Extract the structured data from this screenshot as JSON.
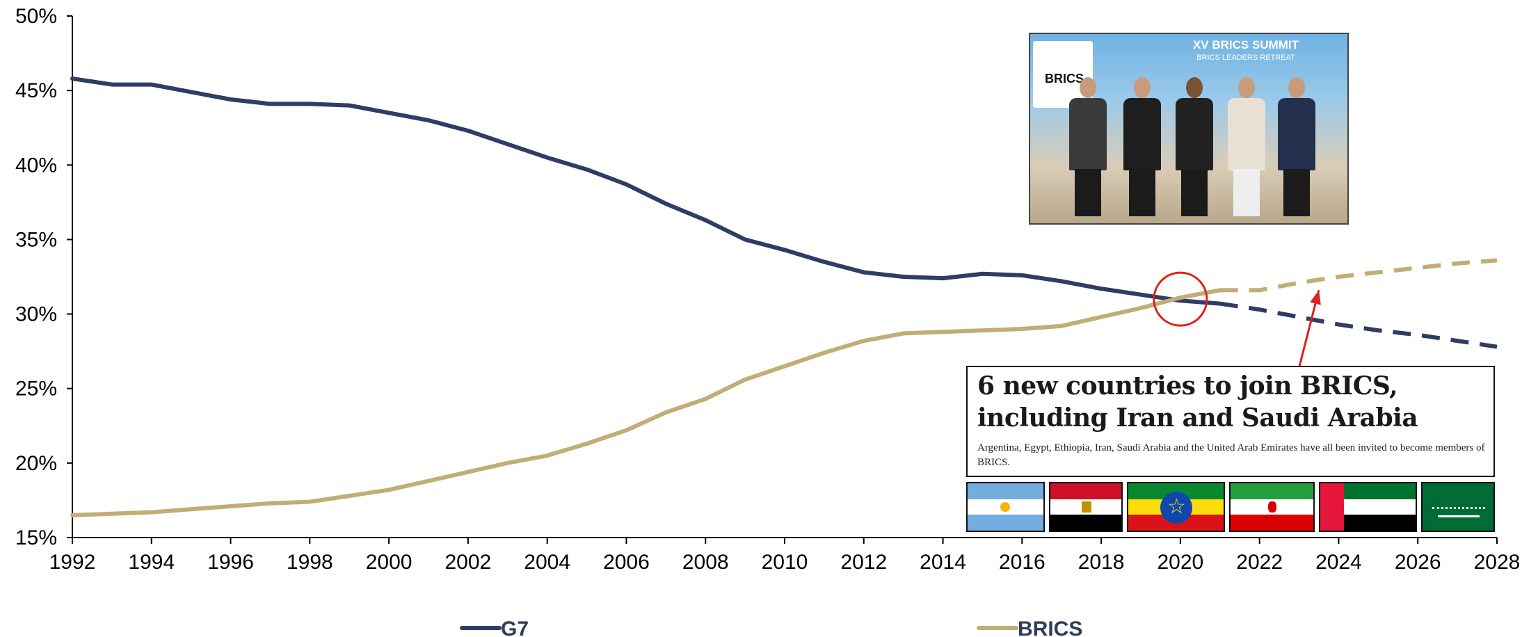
{
  "chart_data": {
    "type": "line",
    "title": "",
    "xlabel": "",
    "ylabel": "",
    "xlim": [
      1992,
      2028
    ],
    "ylim": [
      15,
      50
    ],
    "x_ticks": [
      "1992",
      "1994",
      "1996",
      "1998",
      "2000",
      "2002",
      "2004",
      "2006",
      "2008",
      "2010",
      "2012",
      "2014",
      "2016",
      "2018",
      "2020",
      "2022",
      "2024",
      "2026",
      "2028"
    ],
    "y_ticks": [
      "15%",
      "20%",
      "25%",
      "30%",
      "35%",
      "40%",
      "45%",
      "50%"
    ],
    "legend_position": "bottom",
    "series": [
      {
        "name": "G7",
        "color": "#2f3c64",
        "x": [
          1992,
          1993,
          1994,
          1995,
          1996,
          1997,
          1998,
          1999,
          2000,
          2001,
          2002,
          2003,
          2004,
          2005,
          2006,
          2007,
          2008,
          2009,
          2010,
          2011,
          2012,
          2013,
          2014,
          2015,
          2016,
          2017,
          2018,
          2019,
          2020,
          2021
        ],
        "values": [
          45.8,
          45.4,
          45.4,
          44.9,
          44.4,
          44.1,
          44.1,
          44.0,
          43.5,
          43.0,
          42.3,
          41.4,
          40.5,
          39.7,
          38.7,
          37.4,
          36.3,
          35.0,
          34.3,
          33.5,
          32.8,
          32.5,
          32.4,
          32.7,
          32.6,
          32.2,
          31.7,
          31.3,
          30.9,
          30.7
        ],
        "projection_x": [
          2021,
          2022,
          2023,
          2024,
          2025,
          2026,
          2027,
          2028
        ],
        "projection_values": [
          30.7,
          30.3,
          29.8,
          29.3,
          28.9,
          28.6,
          28.2,
          27.8
        ]
      },
      {
        "name": "BRICS",
        "color": "#c2ad74",
        "x": [
          1992,
          1993,
          1994,
          1995,
          1996,
          1997,
          1998,
          1999,
          2000,
          2001,
          2002,
          2003,
          2004,
          2005,
          2006,
          2007,
          2008,
          2009,
          2010,
          2011,
          2012,
          2013,
          2014,
          2015,
          2016,
          2017,
          2018,
          2019,
          2020,
          2021
        ],
        "values": [
          16.5,
          16.6,
          16.7,
          16.9,
          17.1,
          17.3,
          17.4,
          17.8,
          18.2,
          18.8,
          19.4,
          20.0,
          20.5,
          21.3,
          22.2,
          23.4,
          24.3,
          25.6,
          26.5,
          27.4,
          28.2,
          28.7,
          28.8,
          28.9,
          29.0,
          29.2,
          29.8,
          30.4,
          31.1,
          31.6
        ],
        "projection_x": [
          2021,
          2022,
          2023,
          2024,
          2025,
          2026,
          2027,
          2028
        ],
        "projection_values": [
          31.6,
          31.6,
          32.1,
          32.5,
          32.8,
          33.1,
          33.4,
          33.6
        ]
      }
    ],
    "annotations": {
      "circle": {
        "x": 2020,
        "y": 31.0
      },
      "arrow": {
        "from": {
          "x": 2023.0,
          "y": 26.4
        },
        "to": {
          "x": 2023.5,
          "y": 31.6
        },
        "color": "#e0201b"
      }
    }
  },
  "legend": [
    {
      "label": "G7",
      "color": "#2f3c64"
    },
    {
      "label": "BRICS",
      "color": "#c2ad74"
    }
  ],
  "photo": {
    "title": "XV BRICS SUMMIT",
    "subtitle": "BRICS LEADERS RETREAT",
    "logo_text": "BRICS"
  },
  "news": {
    "headline": "6 new countries to join BRICS, including Iran and Saudi Arabia",
    "description": "Argentina, Egypt, Ethiopia, Iran, Saudi Arabia and the United Arab Emirates have all been invited to become members of BRICS."
  },
  "flags": [
    "argentina-flag",
    "egypt-flag",
    "ethiopia-flag",
    "iran-flag",
    "uae-flag",
    "saudi-arabia-flag"
  ]
}
